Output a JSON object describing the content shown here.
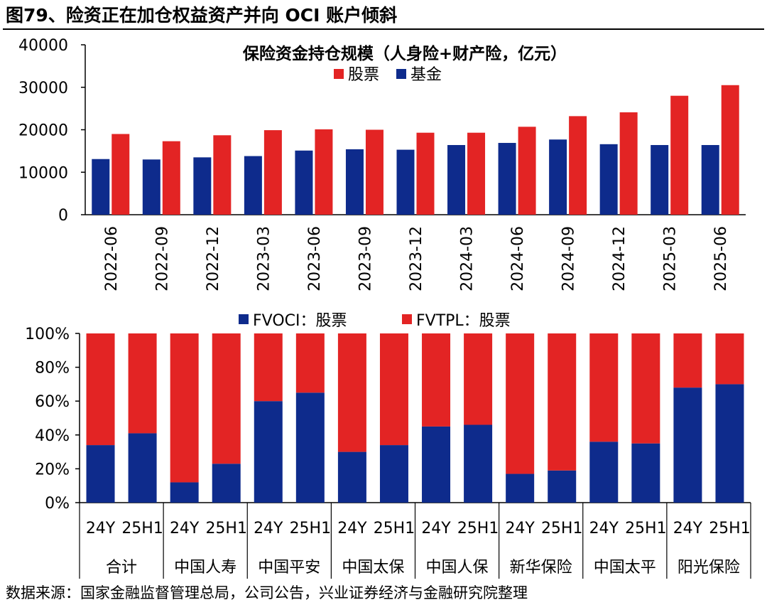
{
  "figure_title": "图79、险资正在加仓权益资产并向 OCI 账户倾斜",
  "source": "数据来源：国家金融监督管理总局，公司公告，兴业证券经济与金融研究院整理",
  "colors": {
    "red": "#E32424",
    "blue": "#0E2B8C",
    "axis": "#000000"
  },
  "chart_data": [
    {
      "type": "bar",
      "title": "保险资金持仓规模（人身险+财产险，亿元）",
      "categories": [
        "2022-06",
        "2022-09",
        "2022-12",
        "2023-03",
        "2023-06",
        "2023-09",
        "2023-12",
        "2024-03",
        "2024-06",
        "2024-09",
        "2024-12",
        "2025-03",
        "2025-06"
      ],
      "series": [
        {
          "name": "股票",
          "color": "#E32424",
          "values": [
            19000,
            17300,
            18700,
            19900,
            20100,
            20000,
            19300,
            19300,
            20700,
            23200,
            24100,
            28000,
            30500
          ]
        },
        {
          "name": "基金",
          "color": "#0E2B8C",
          "values": [
            13100,
            13000,
            13500,
            13800,
            15100,
            15400,
            15300,
            16400,
            16900,
            17700,
            16600,
            16400,
            16400
          ]
        }
      ],
      "ylim": [
        0,
        40000
      ],
      "yticks": [
        "0",
        "10000",
        "20000",
        "30000",
        "40000"
      ],
      "legend": "top-left, below title",
      "grid": false
    },
    {
      "type": "bar",
      "stacked": true,
      "groups": [
        "合计",
        "中国人寿",
        "中国平安",
        "中国太保",
        "中国人保",
        "新华保险",
        "中国太平",
        "阳光保险"
      ],
      "periods": [
        "24Y",
        "25H1"
      ],
      "series": [
        {
          "name": "FVOCI：股票",
          "color": "#0E2B8C",
          "values": [
            34,
            41,
            12,
            23,
            60,
            65,
            30,
            34,
            45,
            46,
            17,
            19,
            36,
            35,
            68,
            70
          ]
        },
        {
          "name": "FVTPL：股票",
          "color": "#E32424",
          "values": [
            66,
            59,
            88,
            77,
            40,
            35,
            70,
            66,
            55,
            54,
            83,
            81,
            64,
            65,
            32,
            30
          ]
        }
      ],
      "ylim": [
        0,
        100
      ],
      "yticks": [
        "0%",
        "20%",
        "40%",
        "60%",
        "80%",
        "100%"
      ],
      "legend": "top-center",
      "grid": false
    }
  ]
}
